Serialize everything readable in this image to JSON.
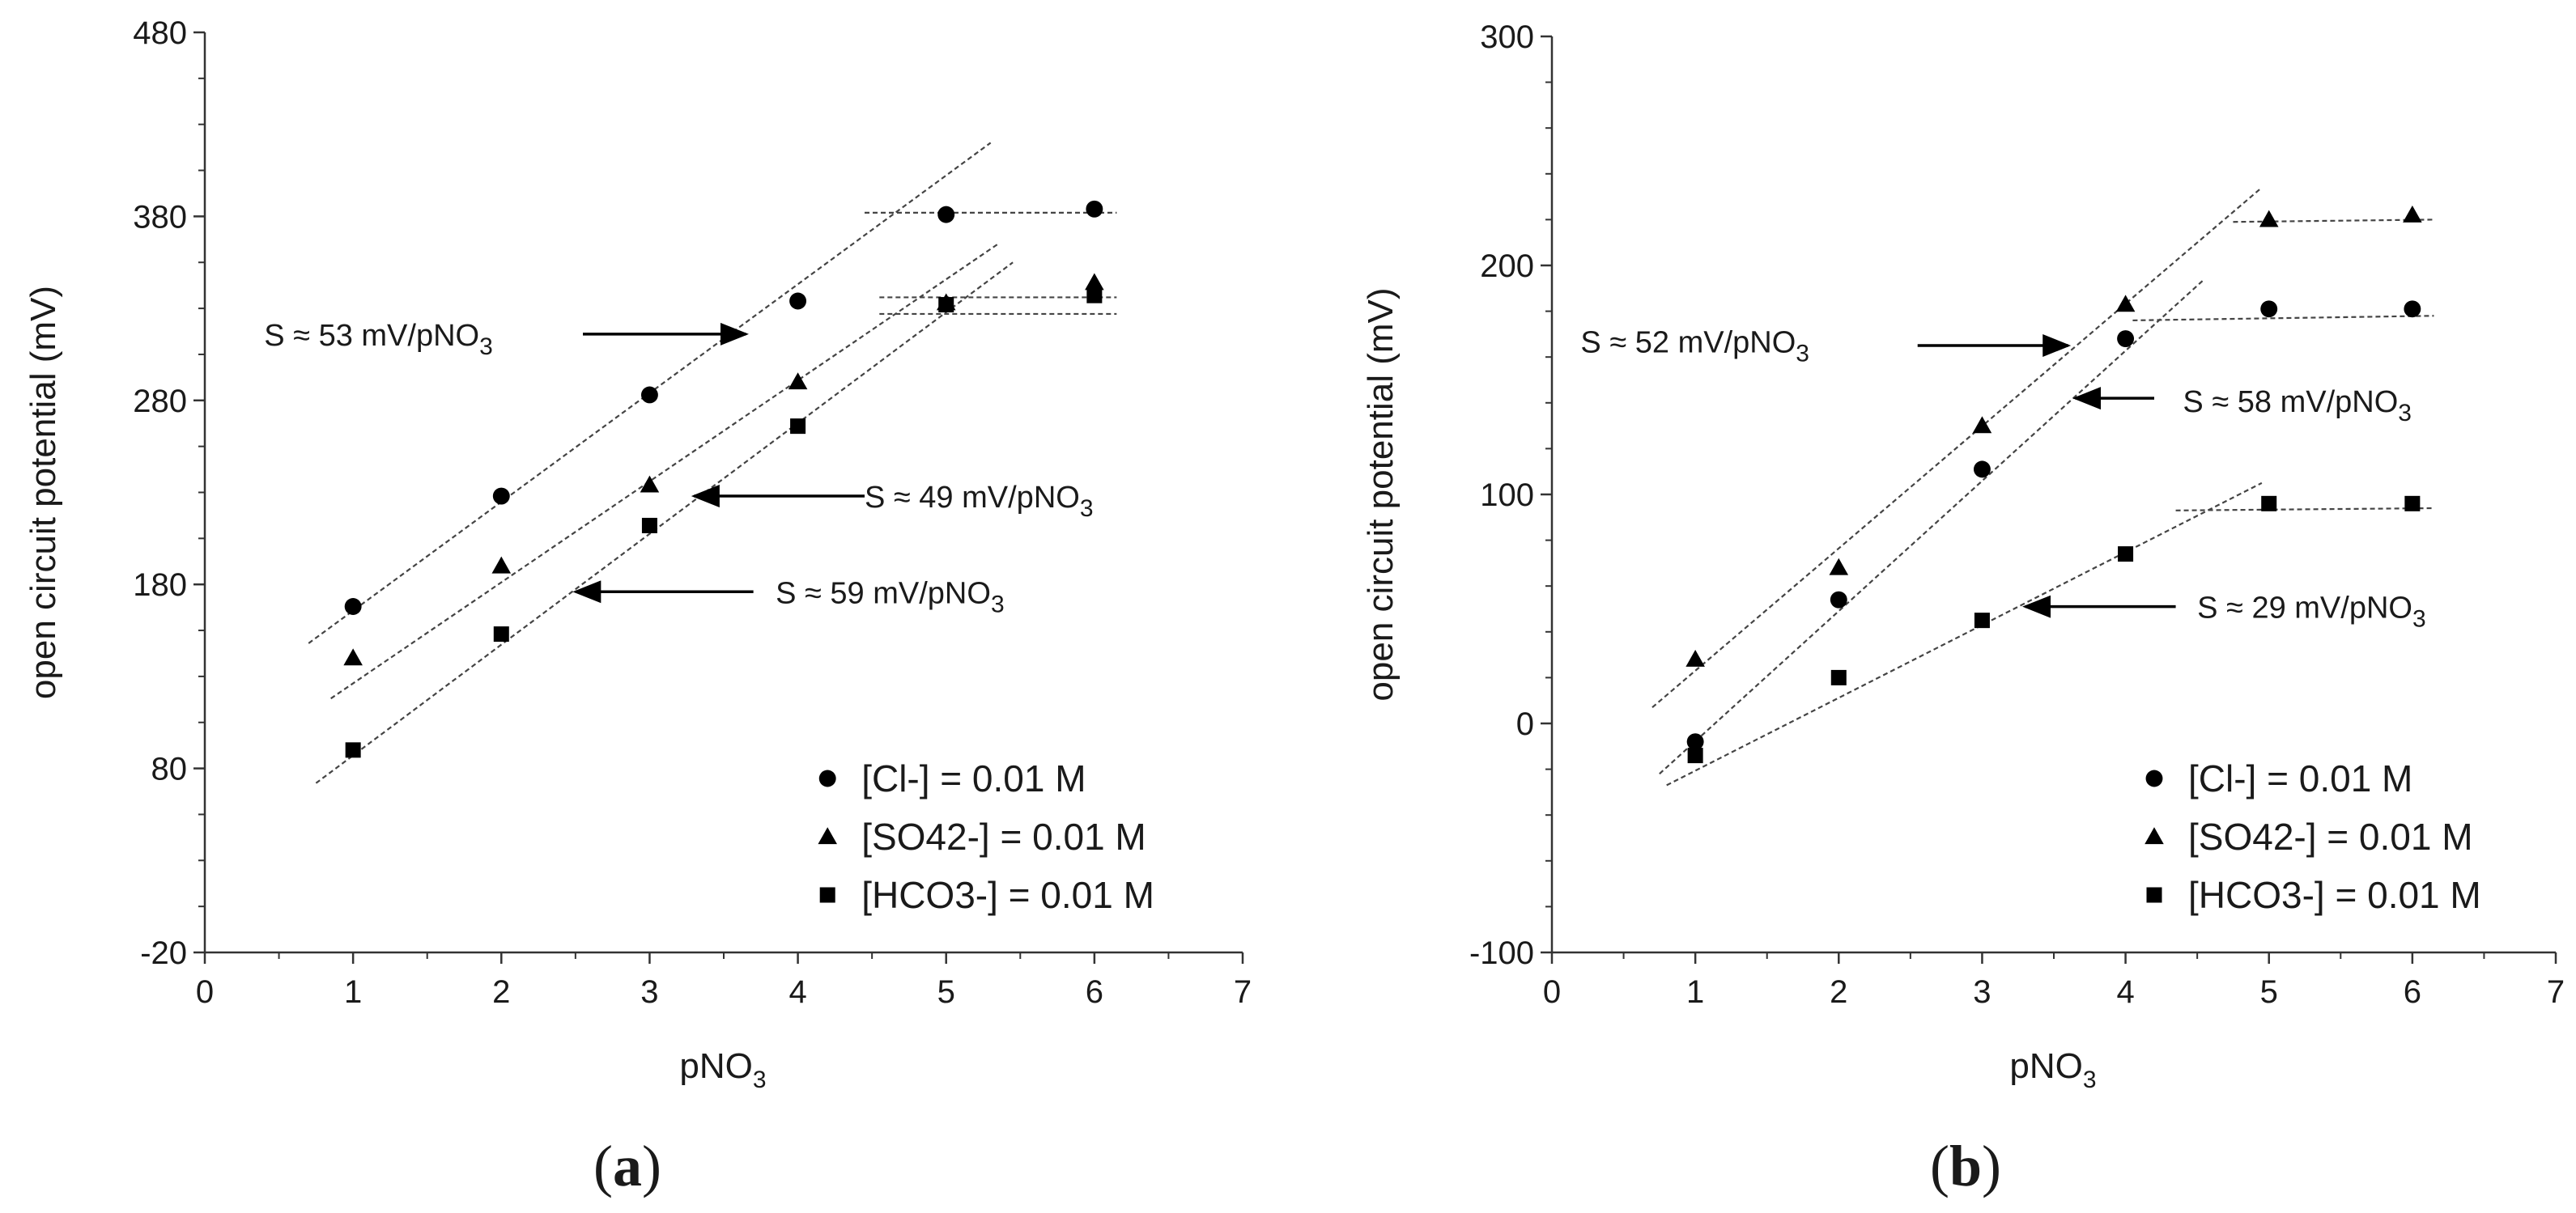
{
  "chart_data": [
    {
      "type": "scatter",
      "panel_label": "(a)",
      "panel_letter": "a",
      "xlabel": "pNO",
      "xlabel_sub": "3",
      "ylabel": "open circuit potential (mV)",
      "xlim": [
        0,
        7
      ],
      "ylim": [
        -20,
        480
      ],
      "xticks": [
        0,
        1,
        2,
        3,
        4,
        5,
        6,
        7
      ],
      "yticks": [
        -20,
        80,
        180,
        280,
        380,
        480
      ],
      "series": [
        {
          "name": "[Cl-] = 0.01 M",
          "marker": "circle",
          "x": [
            1,
            2,
            3,
            4,
            5,
            6
          ],
          "y": [
            168,
            228,
            283,
            334,
            381,
            384
          ]
        },
        {
          "name": "[SO42-] = 0.01 M",
          "marker": "triangle",
          "x": [
            1,
            2,
            3,
            4,
            5,
            6
          ],
          "y": [
            140,
            190,
            234,
            290,
            333,
            344
          ]
        },
        {
          "name": "[HCO3-] = 0.01 M",
          "marker": "square",
          "x": [
            1,
            2,
            3,
            4,
            5,
            6
          ],
          "y": [
            90,
            153,
            212,
            266,
            332,
            337
          ]
        }
      ],
      "fit_lines": [
        {
          "x": [
            0.7,
            5.3
          ],
          "y": [
            148,
            420
          ]
        },
        {
          "x": [
            0.85,
            5.35
          ],
          "y": [
            118,
            365
          ]
        },
        {
          "x": [
            0.75,
            5.45
          ],
          "y": [
            72,
            355
          ]
        },
        {
          "x": [
            4.45,
            6.15
          ],
          "y": [
            382,
            382
          ]
        },
        {
          "x": [
            4.55,
            6.15
          ],
          "y": [
            336,
            336
          ]
        },
        {
          "x": [
            4.55,
            6.15
          ],
          "y": [
            327,
            327
          ]
        }
      ],
      "annotations": [
        {
          "text": "S ≈  53 mV/pNO",
          "sub": "3",
          "text_x": 0.4,
          "text_y": 316,
          "arrow_from": [
            2.55,
            316
          ],
          "arrow_to": [
            3.65,
            316
          ]
        },
        {
          "text": "S ≈ 49 mV/pNO",
          "sub": "3",
          "text_x": 4.45,
          "text_y": 228,
          "arrow_from": [
            4.45,
            228
          ],
          "arrow_to": [
            3.3,
            228
          ]
        },
        {
          "text": "S ≈ 59 mV/pNO",
          "sub": "3",
          "text_x": 3.85,
          "text_y": 176,
          "arrow_from": [
            3.7,
            176
          ],
          "arrow_to": [
            2.5,
            176
          ]
        }
      ],
      "legend_position": "bottom-right"
    },
    {
      "type": "scatter",
      "panel_label": "(b)",
      "panel_letter": "b",
      "xlabel": "pNO",
      "xlabel_sub": "3",
      "ylabel": "open circuit potential (mV)",
      "xlim": [
        0,
        7
      ],
      "ylim": [
        -100,
        300
      ],
      "xticks": [
        0,
        1,
        2,
        3,
        4,
        5,
        6,
        7
      ],
      "yticks": [
        -100,
        0,
        100,
        200,
        300
      ],
      "series": [
        {
          "name": "[Cl-] = 0.01 M",
          "marker": "circle",
          "x": [
            1,
            2,
            3,
            4,
            5,
            6
          ],
          "y": [
            -8,
            54,
            111,
            168,
            181,
            181
          ]
        },
        {
          "name": "[SO42-] = 0.01 M",
          "marker": "triangle",
          "x": [
            1,
            2,
            3,
            4,
            5,
            6
          ],
          "y": [
            28,
            68,
            130,
            183,
            220,
            222
          ]
        },
        {
          "name": "[HCO3-] = 0.01 M",
          "marker": "square",
          "x": [
            1,
            2,
            3,
            4,
            5,
            6
          ],
          "y": [
            -14,
            20,
            45,
            74,
            96,
            96
          ]
        }
      ],
      "fit_lines": [
        {
          "x": [
            0.7,
            4.95
          ],
          "y": [
            7,
            234
          ]
        },
        {
          "x": [
            0.75,
            4.55
          ],
          "y": [
            -22,
            194
          ]
        },
        {
          "x": [
            0.8,
            4.95
          ],
          "y": [
            -27,
            105
          ]
        },
        {
          "x": [
            4.05,
            6.15
          ],
          "y": [
            176,
            178
          ]
        },
        {
          "x": [
            4.75,
            6.15
          ],
          "y": [
            219,
            220
          ]
        },
        {
          "x": [
            4.35,
            6.15
          ],
          "y": [
            93,
            94
          ]
        }
      ],
      "annotations": [
        {
          "text": "S ≈  52 mV/pNO",
          "sub": "3",
          "text_x": 0.2,
          "text_y": 167,
          "arrow_from": [
            2.55,
            165
          ],
          "arrow_to": [
            3.6,
            165
          ]
        },
        {
          "text": "S ≈  58 mV/pNO",
          "sub": "3",
          "text_x": 4.4,
          "text_y": 141,
          "arrow_from": [
            4.2,
            142
          ],
          "arrow_to": [
            3.65,
            142
          ]
        },
        {
          "text": "S ≈  29 mV/pNO",
          "sub": "3",
          "text_x": 4.5,
          "text_y": 51,
          "arrow_from": [
            4.35,
            51
          ],
          "arrow_to": [
            3.3,
            51
          ]
        }
      ],
      "legend_position": "bottom-right"
    }
  ],
  "colors": {
    "marker": "#000000",
    "axis": "#333333",
    "fit": "#444444",
    "arrow": "#000000"
  }
}
